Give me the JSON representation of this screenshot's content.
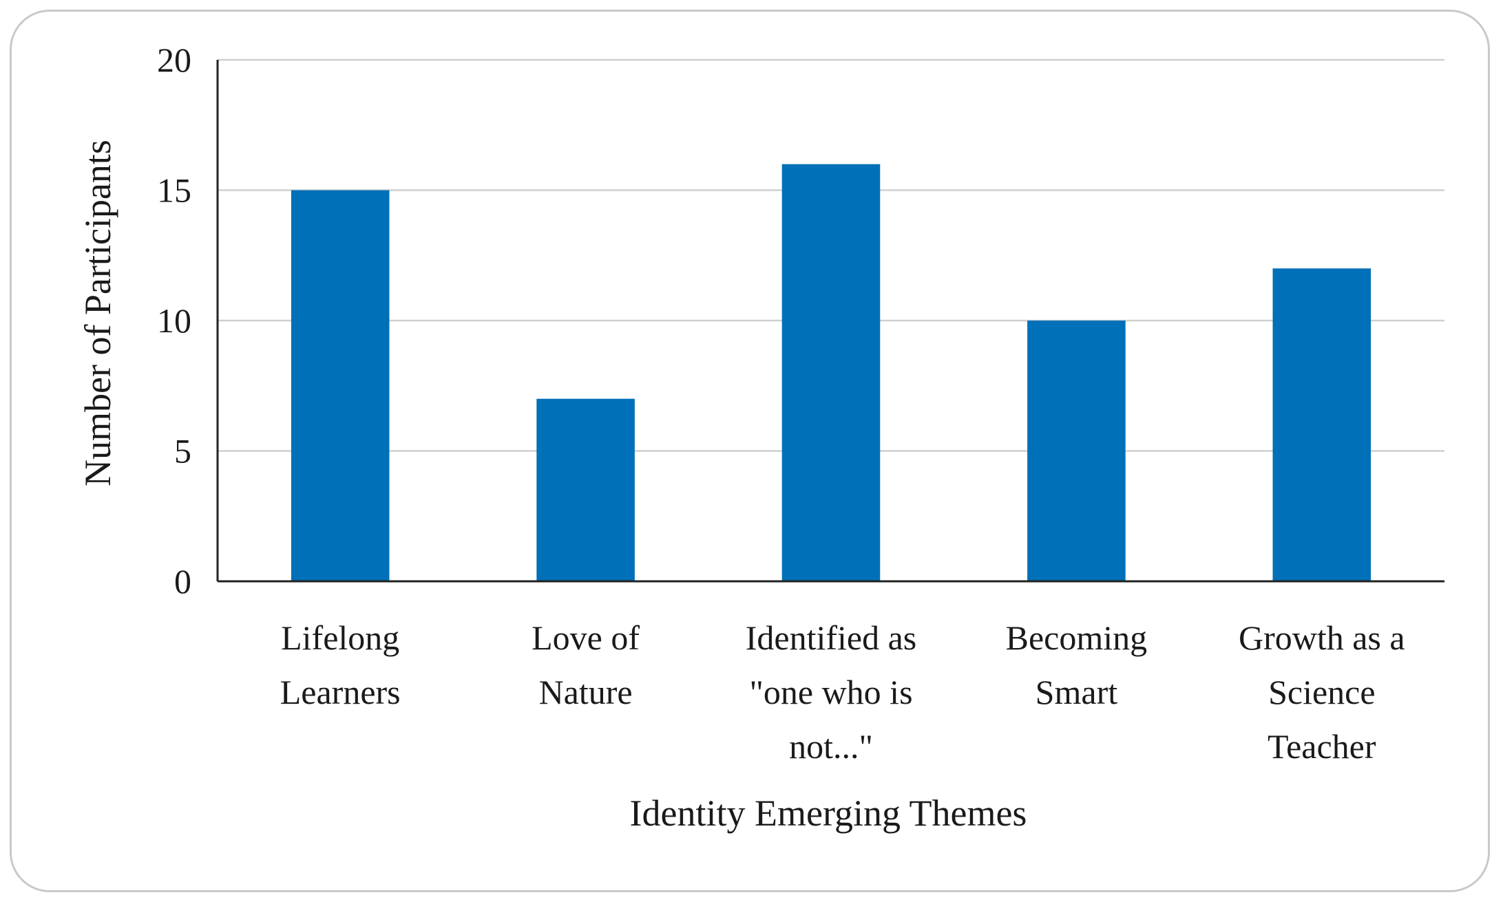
{
  "chart_data": {
    "type": "bar",
    "title": "",
    "xlabel": "Identity Emerging Themes",
    "ylabel": "Number of Participants",
    "ylim": [
      0,
      20
    ],
    "yticks": [
      0,
      5,
      10,
      15,
      20
    ],
    "grid": true,
    "legend": "none",
    "bar_color": "#0070b8",
    "categories": [
      [
        "Lifelong",
        "Learners"
      ],
      [
        "Love of",
        "Nature"
      ],
      [
        "Identified as",
        "\"one who is",
        "not...\""
      ],
      [
        "Becoming",
        "Smart"
      ],
      [
        "Growth as a",
        "Science",
        "Teacher"
      ]
    ],
    "values": [
      15,
      7,
      16,
      10,
      12
    ]
  }
}
